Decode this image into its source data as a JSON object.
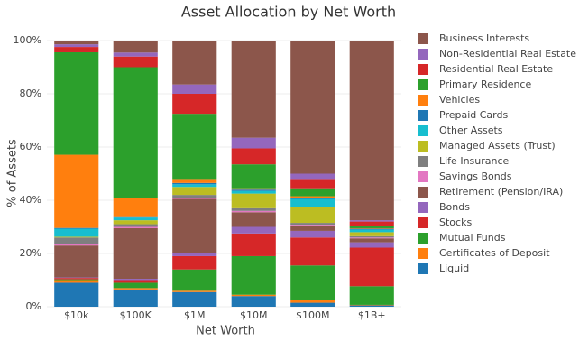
{
  "chart_data": {
    "type": "stacked-bar",
    "title": "Asset Allocation by Net Worth",
    "x_label": "Net Worth",
    "y_label": "% of Assets",
    "categories": [
      "$10k",
      "$100K",
      "$1M",
      "$10M",
      "$100M",
      "$1B+"
    ],
    "ylim": [
      0,
      100
    ],
    "yticks": [
      {
        "value": 0,
        "label": "0%"
      },
      {
        "value": 20,
        "label": "20%"
      },
      {
        "value": 40,
        "label": "40%"
      },
      {
        "value": 60,
        "label": "60%"
      },
      {
        "value": 80,
        "label": "80%"
      },
      {
        "value": 100,
        "label": "100%"
      }
    ],
    "grid": true,
    "legend": "right",
    "series": [
      {
        "name": "Liquid",
        "color": "#1f77b4",
        "values": [
          9,
          6.5,
          5.5,
          4,
          1.5,
          0.5
        ]
      },
      {
        "name": "Certificates of Deposit",
        "color": "#ff7f0e",
        "values": [
          1,
          0.5,
          0.5,
          0.5,
          1,
          0.2
        ]
      },
      {
        "name": "Mutual Funds",
        "color": "#2ca02c",
        "values": [
          0.3,
          2,
          8,
          14.5,
          13,
          7
        ]
      },
      {
        "name": "Stocks",
        "color": "#d62728",
        "values": [
          0.5,
          1,
          5,
          8.5,
          10.5,
          14.5
        ]
      },
      {
        "name": "Bonds",
        "color": "#9467bd",
        "values": [
          0.2,
          0.5,
          1,
          2.5,
          2.5,
          2
        ]
      },
      {
        "name": "Retirement (Pension/IRA)",
        "color": "#8c564b",
        "values": [
          12,
          19,
          20.5,
          5.5,
          2,
          1.5
        ]
      },
      {
        "name": "Savings Bonds",
        "color": "#e377c2",
        "values": [
          0.5,
          0.5,
          0.5,
          0.5,
          0.3,
          0.3
        ]
      },
      {
        "name": "Life Insurance",
        "color": "#7f7f7f",
        "values": [
          2.5,
          1,
          1,
          1,
          0.7,
          0.5
        ]
      },
      {
        "name": "Managed Assets (Trust)",
        "color": "#bcbd22",
        "values": [
          0.3,
          1.5,
          3,
          5.5,
          6,
          1.5
        ]
      },
      {
        "name": "Other Assets",
        "color": "#17becf",
        "values": [
          3,
          1,
          1,
          1,
          3,
          1
        ]
      },
      {
        "name": "Prepaid Cards",
        "color": "#1f77b4",
        "values": [
          0.3,
          0.5,
          0.5,
          0.5,
          0.5,
          0.3
        ]
      },
      {
        "name": "Vehicles",
        "color": "#ff7f0e",
        "values": [
          27.5,
          7,
          1.5,
          0.5,
          0.5,
          0.2
        ]
      },
      {
        "name": "Primary Residence",
        "color": "#2ca02c",
        "values": [
          38.5,
          49,
          24.5,
          9,
          3,
          1
        ]
      },
      {
        "name": "Residential Real Estate",
        "color": "#d62728",
        "values": [
          2,
          4,
          7.5,
          6,
          3.5,
          1.5
        ]
      },
      {
        "name": "Non-Residential Real Estate",
        "color": "#9467bd",
        "values": [
          1,
          1.5,
          3.5,
          4,
          2,
          0.5
        ]
      },
      {
        "name": "Business Interests",
        "color": "#8c564b",
        "values": [
          1.4,
          4.5,
          16.5,
          36.5,
          50,
          67.5
        ]
      }
    ]
  }
}
